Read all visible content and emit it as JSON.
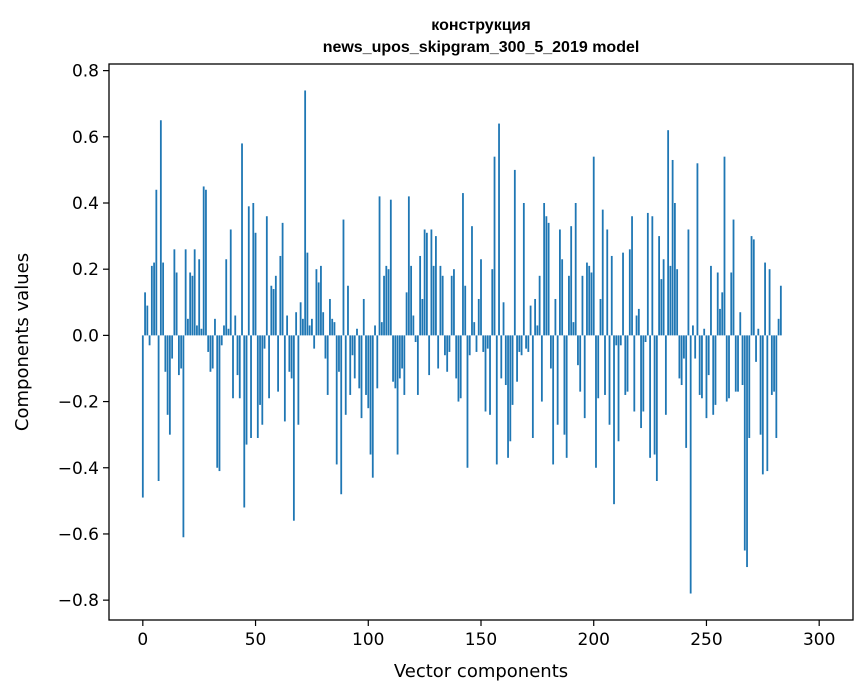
{
  "chart_data": {
    "type": "bar",
    "title": "конструкция",
    "subtitle": "news_upos_skipgram_300_5_2019 model",
    "xlabel": "Vector components",
    "ylabel": "Components values",
    "xlim": [
      -15,
      315
    ],
    "ylim": [
      -0.86,
      0.82
    ],
    "xticks": [
      0,
      50,
      100,
      150,
      200,
      250,
      300
    ],
    "xtick_labels": [
      "0",
      "50",
      "100",
      "150",
      "200",
      "250",
      "300"
    ],
    "yticks": [
      0.8,
      0.6,
      0.4,
      0.2,
      0.0,
      -0.2,
      -0.4,
      -0.6,
      -0.8
    ],
    "ytick_labels": [
      "0.8",
      "0.6",
      "0.4",
      "0.2",
      "0.0",
      "−0.2",
      "−0.4",
      "−0.6",
      "−0.8"
    ],
    "grid": false,
    "legend": "none",
    "bar_color": "#1f77b4",
    "series": [
      {
        "values": [
          -0.49,
          0.13,
          0.09,
          -0.03,
          0.21,
          0.22,
          0.44,
          -0.44,
          0.65,
          0.22,
          -0.11,
          -0.24,
          -0.3,
          -0.07,
          0.26,
          0.19,
          -0.12,
          -0.1,
          -0.61,
          0.26,
          0.05,
          0.19,
          0.18,
          0.26,
          0.03,
          0.23,
          0.02,
          0.45,
          0.44,
          -0.05,
          -0.11,
          -0.1,
          0.05,
          -0.4,
          -0.41,
          -0.03,
          0.03,
          0.23,
          0.02,
          0.32,
          -0.19,
          0.06,
          -0.12,
          -0.19,
          0.58,
          -0.52,
          -0.33,
          0.39,
          -0.31,
          0.4,
          0.31,
          -0.31,
          -0.21,
          -0.27,
          -0.04,
          0.36,
          -0.19,
          0.15,
          0.14,
          0.18,
          -0.17,
          0.24,
          0.34,
          -0.26,
          0.06,
          -0.11,
          -0.13,
          -0.56,
          0.07,
          -0.27,
          0.1,
          0.05,
          0.74,
          0.25,
          0.03,
          0.05,
          -0.04,
          0.2,
          0.16,
          0.21,
          0.07,
          -0.07,
          -0.18,
          0.11,
          0.05,
          0.04,
          -0.39,
          -0.11,
          -0.48,
          0.35,
          -0.24,
          0.15,
          -0.18,
          -0.06,
          -0.13,
          0.02,
          -0.16,
          -0.25,
          0.11,
          -0.18,
          -0.22,
          -0.36,
          -0.43,
          0.03,
          -0.16,
          0.42,
          0.04,
          0.18,
          0.21,
          0.2,
          0.41,
          -0.14,
          -0.16,
          -0.36,
          -0.13,
          -0.1,
          -0.18,
          0.13,
          0.42,
          0.21,
          0.06,
          -0.02,
          -0.18,
          0.24,
          0.11,
          0.32,
          0.31,
          -0.12,
          0.32,
          0.21,
          0.3,
          -0.1,
          0.21,
          0.18,
          -0.06,
          -0.11,
          -0.05,
          0.18,
          0.2,
          -0.13,
          -0.2,
          -0.19,
          0.43,
          0.15,
          -0.4,
          -0.06,
          0.33,
          0.04,
          -0.05,
          0.11,
          0.23,
          -0.05,
          -0.23,
          -0.04,
          -0.24,
          0.2,
          0.54,
          -0.39,
          0.64,
          -0.13,
          0.1,
          -0.15,
          -0.37,
          -0.32,
          -0.21,
          0.5,
          -0.14,
          -0.05,
          -0.06,
          0.4,
          -0.04,
          -0.05,
          0.09,
          -0.31,
          0.11,
          0.03,
          0.18,
          -0.2,
          0.4,
          0.36,
          0.34,
          -0.1,
          -0.39,
          0.11,
          -0.27,
          0.32,
          0.23,
          -0.3,
          -0.37,
          0.18,
          0.33,
          0.04,
          0.4,
          -0.09,
          -0.17,
          0.18,
          -0.25,
          0.22,
          0.21,
          0.19,
          0.54,
          -0.4,
          -0.19,
          0.11,
          0.38,
          -0.18,
          0.32,
          -0.27,
          0.24,
          -0.51,
          -0.03,
          -0.32,
          -0.03,
          0.25,
          -0.18,
          -0.17,
          0.26,
          0.36,
          -0.23,
          0.06,
          0.08,
          -0.28,
          -0.23,
          -0.02,
          0.37,
          -0.37,
          0.36,
          -0.36,
          -0.44,
          0.3,
          0.17,
          0.23,
          -0.24,
          0.62,
          0.21,
          0.53,
          0.4,
          0.2,
          -0.13,
          -0.15,
          -0.07,
          -0.34,
          0.32,
          -0.78,
          0.03,
          -0.07,
          0.52,
          -0.18,
          -0.19,
          0.02,
          -0.25,
          -0.12,
          0.21,
          -0.24,
          -0.21,
          0.19,
          0.08,
          0.13,
          0.54,
          -0.2,
          -0.19,
          0.19,
          0.35,
          -0.17,
          -0.17,
          0.07,
          -0.15,
          -0.65,
          -0.7,
          -0.31,
          0.3,
          0.29,
          -0.08,
          0.02,
          -0.3,
          -0.42,
          0.22,
          -0.41,
          0.2,
          -0.18,
          -0.17,
          -0.31,
          0.05,
          0.15
        ]
      }
    ]
  }
}
